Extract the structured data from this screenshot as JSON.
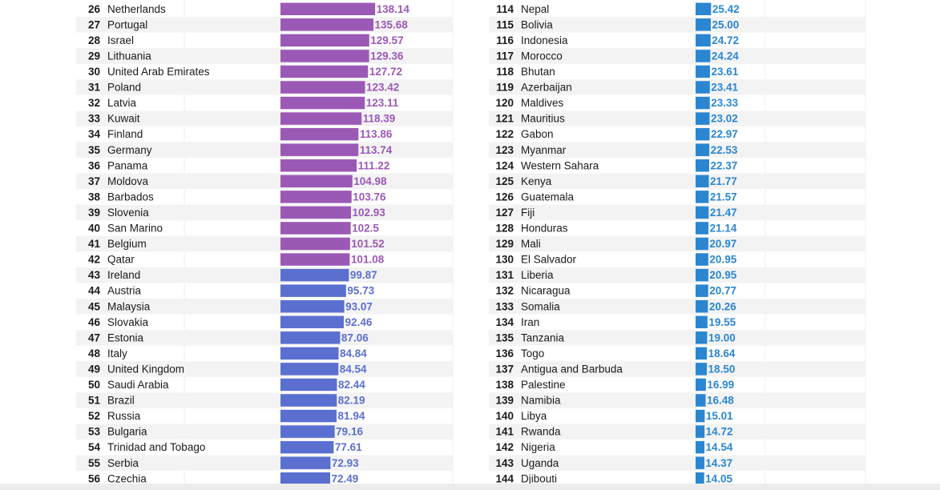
{
  "chart_data": [
    {
      "type": "bar",
      "orientation": "horizontal",
      "ranks": [
        26,
        27,
        28,
        29,
        30,
        31,
        32,
        33,
        34,
        35,
        36,
        37,
        38,
        39,
        40,
        41,
        42,
        43,
        44,
        45,
        46,
        47,
        48,
        49,
        50,
        51,
        52,
        53,
        54,
        55,
        56
      ],
      "categories": [
        "Netherlands",
        "Portugal",
        "Israel",
        "Lithuania",
        "United Arab Emirates",
        "Poland",
        "Latvia",
        "Kuwait",
        "Finland",
        "Germany",
        "Panama",
        "Moldova",
        "Barbados",
        "Slovenia",
        "San Marino",
        "Belgium",
        "Qatar",
        "Ireland",
        "Austria",
        "Malaysia",
        "Slovakia",
        "Estonia",
        "Italy",
        "United Kingdom",
        "Saudi Arabia",
        "Brazil",
        "Russia",
        "Bulgaria",
        "Trinidad and Tobago",
        "Serbia",
        "Czechia"
      ],
      "labels": [
        "138.14",
        "135.68",
        "129.57",
        "129.36",
        "127.72",
        "123.42",
        "123.11",
        "118.39",
        "113.86",
        "113.74",
        "111.22",
        "104.98",
        "103.76",
        "102.93",
        "102.5",
        "101.52",
        "101.08",
        "99.87",
        "95.73",
        "93.07",
        "92.46",
        "87.06",
        "84.84",
        "84.54",
        "82.44",
        "82.19",
        "81.94",
        "79.16",
        "77.61",
        "72.93",
        "72.49"
      ],
      "values": [
        138.14,
        135.68,
        129.57,
        129.36,
        127.72,
        123.42,
        123.11,
        118.39,
        113.86,
        113.74,
        111.22,
        104.98,
        103.76,
        102.93,
        102.5,
        101.52,
        101.08,
        99.87,
        95.73,
        93.07,
        92.46,
        87.06,
        84.84,
        84.54,
        82.44,
        82.19,
        81.94,
        79.16,
        77.61,
        72.93,
        72.49
      ],
      "colors": {
        "above_100": "#9b59b6",
        "below_100": "#5b6fd0"
      }
    },
    {
      "type": "bar",
      "orientation": "horizontal",
      "ranks": [
        114,
        115,
        116,
        117,
        118,
        119,
        120,
        121,
        122,
        123,
        124,
        125,
        126,
        127,
        128,
        129,
        130,
        131,
        132,
        133,
        134,
        135,
        136,
        137,
        138,
        139,
        140,
        141,
        142,
        143,
        144
      ],
      "categories": [
        "Nepal",
        "Bolivia",
        "Indonesia",
        "Morocco",
        "Bhutan",
        "Azerbaijan",
        "Maldives",
        "Mauritius",
        "Gabon",
        "Myanmar",
        "Western Sahara",
        "Kenya",
        "Guatemala",
        "Fiji",
        "Honduras",
        "Mali",
        "El Salvador",
        "Liberia",
        "Nicaragua",
        "Somalia",
        "Iran",
        "Tanzania",
        "Togo",
        "Antigua and Barbuda",
        "Palestine",
        "Namibia",
        "Libya",
        "Rwanda",
        "Nigeria",
        "Uganda",
        "Djibouti"
      ],
      "labels": [
        "25.42",
        "25.00",
        "24.72",
        "24.24",
        "23.61",
        "23.41",
        "23.33",
        "23.02",
        "22.97",
        "22.53",
        "22.37",
        "21.77",
        "21.57",
        "21.47",
        "21.14",
        "20.97",
        "20.95",
        "20.95",
        "20.77",
        "20.26",
        "19.55",
        "19.00",
        "18.64",
        "18.50",
        "16.99",
        "16.48",
        "15.01",
        "14.72",
        "14.54",
        "14.37",
        "14.05"
      ],
      "values": [
        25.42,
        25.0,
        24.72,
        24.24,
        23.61,
        23.41,
        23.33,
        23.02,
        22.97,
        22.53,
        22.37,
        21.77,
        21.57,
        21.47,
        21.14,
        20.97,
        20.95,
        20.95,
        20.77,
        20.26,
        19.55,
        19.0,
        18.64,
        18.5,
        16.99,
        16.48,
        15.01,
        14.72,
        14.54,
        14.37,
        14.05
      ],
      "colors": {
        "bar": "#2b86d2"
      }
    }
  ]
}
